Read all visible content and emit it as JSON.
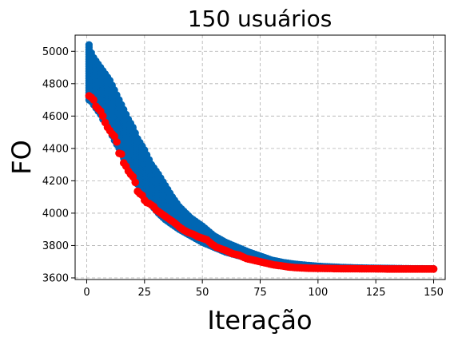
{
  "chart_data": {
    "type": "scatter",
    "title": "150 usuários",
    "xlabel": "Iteração",
    "ylabel": "FO",
    "xlim": [
      -5,
      155
    ],
    "ylim": [
      3590,
      5100
    ],
    "grid": true,
    "xticks": [
      0,
      25,
      50,
      75,
      100,
      125,
      150
    ],
    "yticks": [
      3600,
      3800,
      4000,
      4200,
      4400,
      4600,
      4800,
      5000
    ],
    "series": [
      {
        "color": "#0066b3",
        "marker": "circle",
        "description": "population values per iteration (vertical bands)",
        "x": [
          1,
          2,
          3,
          4,
          5,
          6,
          7,
          8,
          10,
          12,
          14,
          16,
          18,
          20,
          22,
          25,
          28,
          31,
          34,
          37,
          40,
          45,
          50,
          55,
          60,
          65,
          70,
          75,
          80,
          85,
          90,
          95,
          100,
          110,
          120,
          130,
          140,
          150
        ],
        "ymin": [
          4700,
          4690,
          4670,
          4650,
          4630,
          4610,
          4580,
          4560,
          4510,
          4450,
          4400,
          4340,
          4290,
          4230,
          4180,
          4110,
          4050,
          4000,
          3960,
          3930,
          3900,
          3860,
          3820,
          3790,
          3760,
          3740,
          3720,
          3705,
          3690,
          3680,
          3672,
          3668,
          3665,
          3660,
          3658,
          3657,
          3656,
          3655
        ],
        "ymax": [
          5040,
          4990,
          4960,
          4940,
          4920,
          4900,
          4880,
          4860,
          4820,
          4760,
          4700,
          4640,
          4580,
          4530,
          4460,
          4390,
          4300,
          4240,
          4170,
          4100,
          4040,
          3970,
          3920,
          3860,
          3820,
          3790,
          3760,
          3735,
          3710,
          3695,
          3685,
          3678,
          3672,
          3665,
          3661,
          3659,
          3657,
          3656
        ]
      },
      {
        "color": "#ff0000",
        "marker": "circle",
        "description": "best value per iteration",
        "x": [
          1,
          2,
          3,
          4,
          5,
          6,
          7,
          8,
          9,
          10,
          11,
          12,
          13,
          14,
          15,
          16,
          17,
          18,
          19,
          20,
          21,
          22,
          23,
          24,
          25,
          26,
          27,
          28,
          29,
          30,
          32,
          34,
          36,
          38,
          40,
          42,
          44,
          46,
          48,
          50,
          52,
          54,
          56,
          58,
          60,
          63,
          66,
          69,
          72,
          75,
          78,
          81,
          84,
          87,
          90,
          93,
          96,
          100,
          105,
          110,
          115,
          120,
          125,
          130,
          135,
          140,
          145,
          150
        ],
        "y": [
          4725,
          4715,
          4700,
          4660,
          4645,
          4630,
          4600,
          4560,
          4530,
          4510,
          4490,
          4475,
          4440,
          4370,
          4365,
          4310,
          4290,
          4260,
          4240,
          4225,
          4190,
          4135,
          4120,
          4110,
          4080,
          4065,
          4060,
          4050,
          4040,
          4020,
          4000,
          3980,
          3960,
          3940,
          3915,
          3895,
          3880,
          3870,
          3855,
          3845,
          3835,
          3810,
          3790,
          3780,
          3770,
          3750,
          3740,
          3720,
          3710,
          3700,
          3690,
          3680,
          3675,
          3668,
          3664,
          3662,
          3660,
          3659,
          3658,
          3657,
          3657,
          3656,
          3656,
          3655,
          3655,
          3655,
          3655,
          3655
        ]
      }
    ]
  }
}
